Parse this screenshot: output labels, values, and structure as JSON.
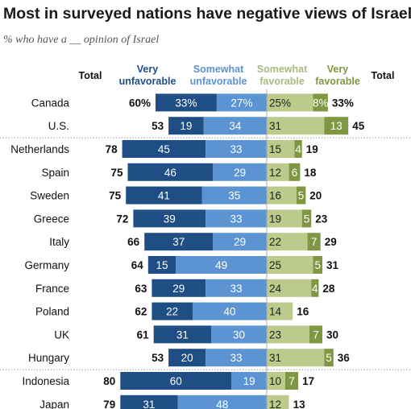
{
  "title": "Most in surveyed nations have negative views of Israel",
  "subtitle": "% who have a __ opinion of Israel",
  "colors": {
    "very_unfavorable": "#1f4e85",
    "somewhat_unfavorable": "#5b93d3",
    "somewhat_favorable": "#bccb8c",
    "very_favorable": "#7f9743",
    "divider": "#aaaaaa",
    "header_unfav_very": "#1f4e85",
    "header_unfav_somewhat": "#5b93d3",
    "header_fav_somewhat": "#a8b981",
    "header_fav_very": "#7f9743"
  },
  "headers": {
    "total_left": "Total",
    "very_unfavorable": [
      "Very",
      "unfavorable"
    ],
    "somewhat_unfavorable": [
      "Somewhat",
      "unfavorable"
    ],
    "somewhat_favorable": [
      "Somewhat",
      "favorable"
    ],
    "very_favorable": [
      "Very",
      "favorable"
    ],
    "total_right": "Total"
  },
  "chart_data": {
    "type": "bar",
    "stacked": "diverging",
    "title": "Most in surveyed nations have negative views of Israel",
    "subtitle": "% who have a __ opinion of Israel",
    "categories": [
      "Canada",
      "U.S.",
      "Netherlands",
      "Spain",
      "Sweden",
      "Greece",
      "Italy",
      "Germany",
      "France",
      "Poland",
      "UK",
      "Hungary",
      "Indonesia",
      "Japan"
    ],
    "percent_sign_on_first_row": true,
    "series": [
      {
        "name": "Very unfavorable",
        "values": [
          33,
          19,
          45,
          46,
          41,
          39,
          37,
          15,
          29,
          22,
          31,
          20,
          60,
          31
        ]
      },
      {
        "name": "Somewhat unfavorable",
        "values": [
          27,
          34,
          33,
          29,
          35,
          33,
          29,
          49,
          33,
          40,
          30,
          33,
          19,
          48
        ]
      },
      {
        "name": "Somewhat favorable",
        "values": [
          25,
          31,
          15,
          12,
          16,
          19,
          22,
          25,
          24,
          14,
          23,
          31,
          10,
          12
        ]
      },
      {
        "name": "Very favorable",
        "values": [
          8,
          13,
          4,
          6,
          5,
          5,
          7,
          5,
          4,
          null,
          7,
          5,
          7,
          null
        ]
      }
    ],
    "total_unfavorable": [
      60,
      53,
      78,
      75,
      75,
      72,
      66,
      64,
      63,
      62,
      61,
      53,
      80,
      79
    ],
    "total_favorable": [
      33,
      45,
      19,
      18,
      20,
      23,
      29,
      31,
      28,
      16,
      30,
      36,
      17,
      13
    ],
    "groups": [
      [
        "Canada",
        "U.S."
      ],
      [
        "Netherlands",
        "Spain",
        "Sweden",
        "Greece",
        "Italy",
        "Germany",
        "France",
        "Poland",
        "UK",
        "Hungary"
      ],
      [
        "Indonesia",
        "Japan"
      ]
    ]
  }
}
